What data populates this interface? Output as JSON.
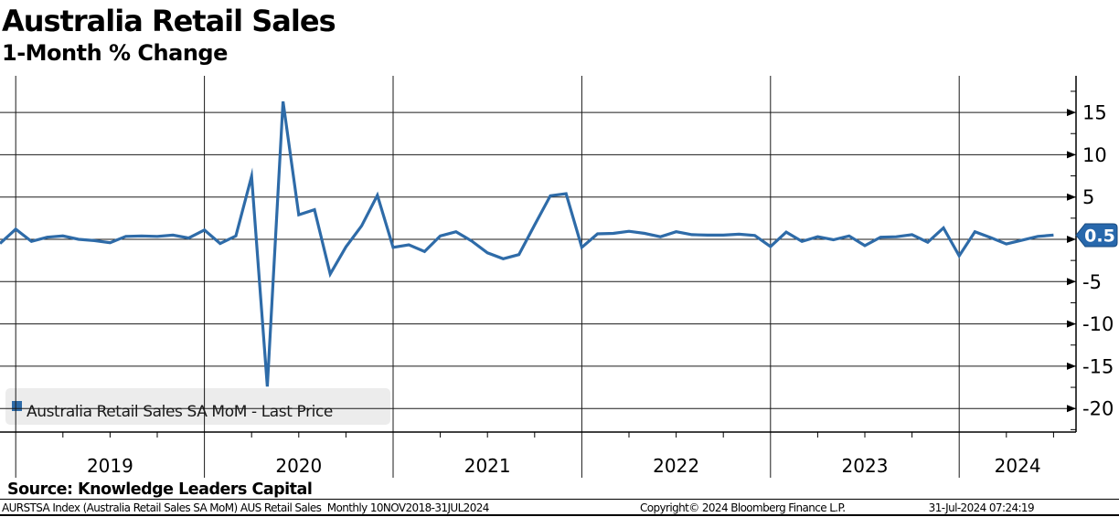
{
  "title": "Australia Retail Sales",
  "subtitle": "1-Month % Change",
  "legend": {
    "label": "Australia Retail Sales SA MoM - Last Price"
  },
  "last_price_badge": "0.5",
  "source_line": "Source: Knowledge Leaders Capital",
  "footer": {
    "left": "AURSTSA Index (Australia Retail Sales SA MoM) AUS Retail Sales  Monthly 10NOV2018-31JUL2024",
    "center": "Copyright© 2024 Bloomberg Finance L.P.",
    "right": "31-Jul-2024 07:24:19"
  },
  "colors": {
    "line": "#2e6ba8",
    "badge_fill": "#2868ac",
    "badge_border": "#17497e",
    "badge_text": "#ffffff",
    "grid": "#1a1a1a",
    "legend_bg": "#ececec",
    "legend_text": "#1a1a1a"
  },
  "chart_data": {
    "type": "line",
    "title": "Australia Retail Sales",
    "subtitle": "1-Month % Change",
    "series_name": "Australia Retail Sales SA MoM - Last Price",
    "x_year_labels": [
      "2019",
      "2020",
      "2021",
      "2022",
      "2023",
      "2024"
    ],
    "y_tick_labels": [
      15,
      10,
      5,
      -5,
      -10,
      -15,
      -20
    ],
    "y_gridline_values": [
      15,
      10,
      5,
      0,
      -5,
      -10,
      -15,
      -20
    ],
    "y_minor_tick_step": 2.5,
    "ylim": [
      -22.5,
      19.3
    ],
    "x_range": "10NOV2018-31JUL2024",
    "frequency": "Monthly",
    "last_price": 0.5,
    "legend_position": "bottom-left",
    "grid": "on",
    "axis_side": "right",
    "months": [
      "2018-12",
      "2019-01",
      "2019-02",
      "2019-03",
      "2019-04",
      "2019-05",
      "2019-06",
      "2019-07",
      "2019-08",
      "2019-09",
      "2019-10",
      "2019-11",
      "2019-12",
      "2020-01",
      "2020-02",
      "2020-03",
      "2020-04",
      "2020-05",
      "2020-06",
      "2020-07",
      "2020-08",
      "2020-09",
      "2020-10",
      "2020-11",
      "2020-12",
      "2021-01",
      "2021-02",
      "2021-03",
      "2021-04",
      "2021-05",
      "2021-06",
      "2021-07",
      "2021-08",
      "2021-09",
      "2021-10",
      "2021-11",
      "2021-12",
      "2022-01",
      "2022-02",
      "2022-03",
      "2022-04",
      "2022-05",
      "2022-06",
      "2022-07",
      "2022-08",
      "2022-09",
      "2022-10",
      "2022-11",
      "2022-12",
      "2023-01",
      "2023-02",
      "2023-03",
      "2023-04",
      "2023-05",
      "2023-06",
      "2023-07",
      "2023-08",
      "2023-09",
      "2023-10",
      "2023-11",
      "2023-12",
      "2024-01",
      "2024-02",
      "2024-03",
      "2024-04",
      "2024-05",
      "2024-06",
      "2024-07"
    ],
    "values": [
      -0.5,
      1.2,
      -0.25,
      0.25,
      0.4,
      0.0,
      -0.15,
      -0.4,
      0.35,
      0.4,
      0.35,
      0.5,
      0.15,
      1.1,
      -0.5,
      0.4,
      7.45,
      -17.4,
      16.3,
      2.9,
      3.5,
      -4.1,
      -0.9,
      1.6,
      5.2,
      -0.95,
      -0.65,
      -1.45,
      0.4,
      0.9,
      -0.2,
      -1.6,
      -2.3,
      -1.8,
      1.7,
      5.15,
      5.4,
      -0.95,
      0.65,
      0.7,
      0.95,
      0.7,
      0.3,
      0.9,
      0.55,
      0.5,
      0.5,
      0.6,
      0.45,
      -0.85,
      0.85,
      -0.25,
      0.3,
      -0.05,
      0.4,
      -0.75,
      0.25,
      0.3,
      0.55,
      -0.35,
      1.35,
      -1.95,
      0.9,
      0.2,
      -0.55,
      -0.1,
      0.35,
      0.5
    ]
  }
}
